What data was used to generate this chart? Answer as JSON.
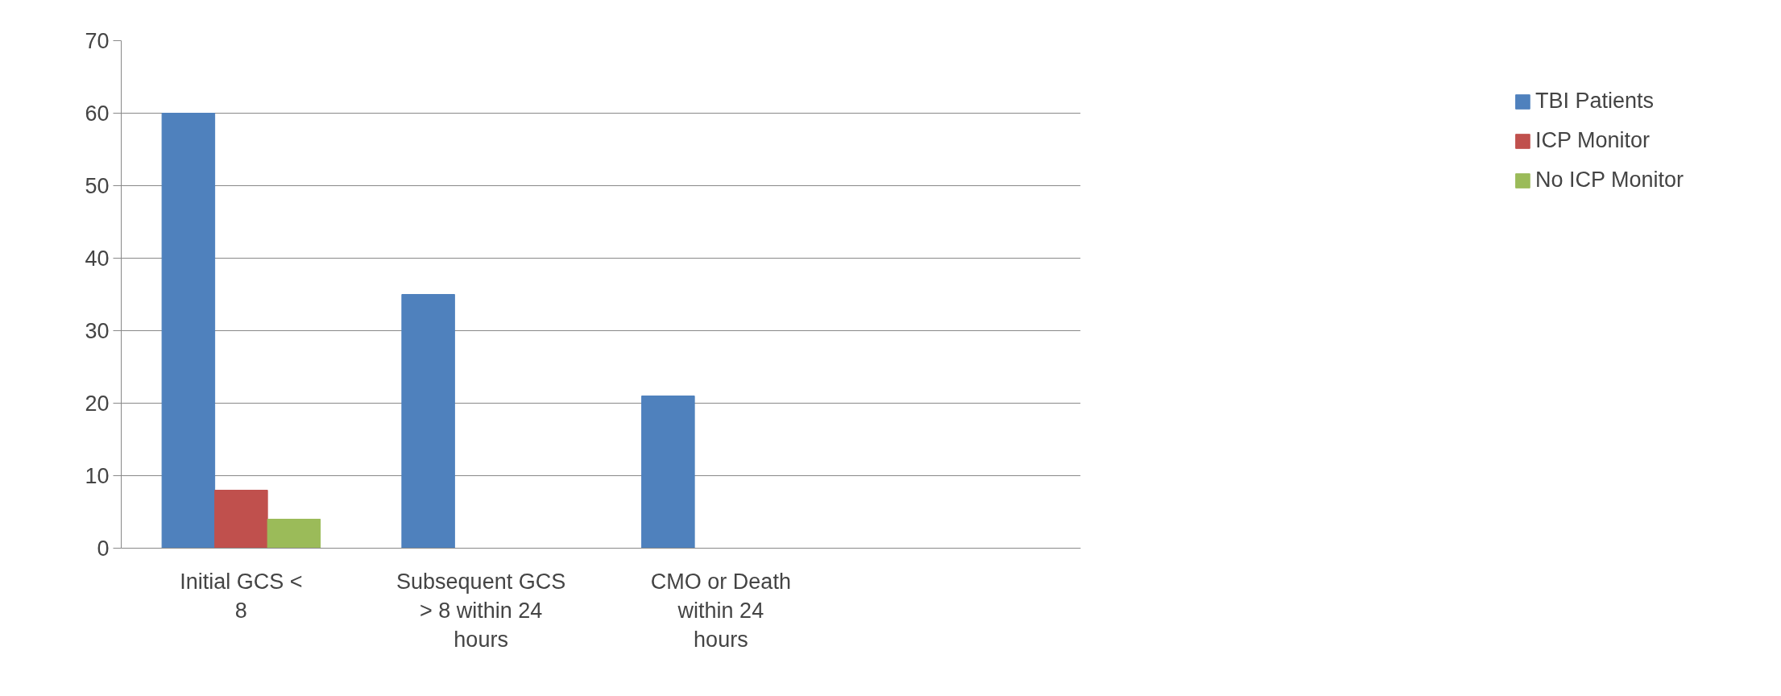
{
  "chart_data": {
    "type": "bar",
    "categories": [
      "Initial GCS < 8",
      "Subsequent GCS > 8 within 24 hours",
      "CMO or Death within 24 hours",
      null
    ],
    "series": [
      {
        "name": "TBI Patients",
        "color": "#4f81bd",
        "values": [
          60,
          35,
          21,
          null
        ]
      },
      {
        "name": "ICP Monitor",
        "color": "#c0504d",
        "values": [
          8,
          null,
          null,
          null
        ]
      },
      {
        "name": "No ICP Monitor",
        "color": "#9bbb59",
        "values": [
          4,
          null,
          null,
          null
        ]
      }
    ],
    "ylim": [
      0,
      70
    ],
    "yticks": [
      0,
      10,
      20,
      30,
      40,
      50,
      60,
      70
    ],
    "grid": "y",
    "legend": "right"
  }
}
